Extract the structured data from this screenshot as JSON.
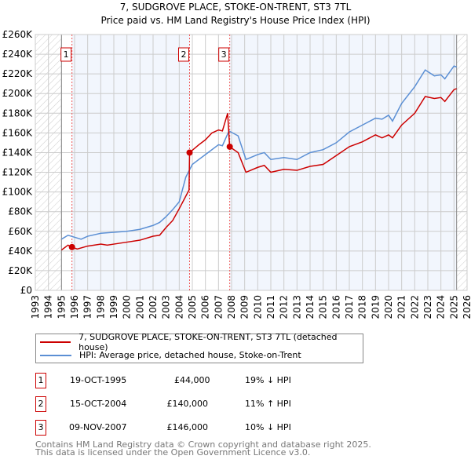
{
  "chart_data": {
    "type": "line",
    "title": "7, SUDGROVE PLACE, STOKE-ON-TRENT, ST3 7TL",
    "subtitle": "Price paid vs. HM Land Registry's House Price Index (HPI)",
    "xlim": [
      1993,
      2026
    ],
    "ylim": [
      0,
      260000
    ],
    "yticks": [
      "£0",
      "£20K",
      "£40K",
      "£60K",
      "£80K",
      "£100K",
      "£120K",
      "£140K",
      "£160K",
      "£180K",
      "£200K",
      "£220K",
      "£240K",
      "£260K"
    ],
    "xticks": [
      "1993",
      "1994",
      "1995",
      "1996",
      "1997",
      "1998",
      "1999",
      "2000",
      "2001",
      "2002",
      "2003",
      "2004",
      "2005",
      "2006",
      "2007",
      "2008",
      "2009",
      "2010",
      "2011",
      "2012",
      "2013",
      "2014",
      "2015",
      "2016",
      "2017",
      "2018",
      "2019",
      "2020",
      "2021",
      "2022",
      "2023",
      "2024",
      "2025",
      "2026"
    ],
    "grid": true,
    "series": [
      {
        "name": "7, SUDGROVE PLACE, STOKE-ON-TRENT, ST3 7TL (detached house)",
        "color": "#cc0000",
        "x": [
          1995,
          1995.5,
          1995.8,
          1996.2,
          1997,
          1998,
          1998.5,
          1999,
          2000,
          2001,
          2002,
          2002.5,
          2003,
          2003.5,
          2004,
          2004.75,
          2004.79,
          2005.5,
          2006,
          2006.5,
          2007,
          2007.3,
          2007.7,
          2007.85,
          2008.5,
          2009.1,
          2010,
          2010.5,
          2011,
          2012,
          2013,
          2014,
          2015,
          2016,
          2017,
          2018,
          2019,
          2019.5,
          2020,
          2020.3,
          2021,
          2022,
          2022.8,
          2023.5,
          2024,
          2024.3,
          2025,
          2025.2
        ],
        "y": [
          41000,
          46000,
          44000,
          42000,
          45000,
          47000,
          46000,
          47000,
          49000,
          51000,
          55000,
          56000,
          64000,
          71000,
          83000,
          102000,
          140000,
          148000,
          153000,
          160000,
          163000,
          162000,
          180000,
          146000,
          140000,
          120000,
          125000,
          127000,
          120000,
          123000,
          122000,
          126000,
          128000,
          137000,
          146000,
          151000,
          158000,
          155000,
          158000,
          155000,
          168000,
          180000,
          197000,
          195000,
          196000,
          192000,
          204000,
          205000
        ]
      },
      {
        "name": "HPI: Average price, detached house, Stoke-on-Trent",
        "color": "#5b8fd4",
        "x": [
          1995,
          1995.5,
          1996,
          1996.5,
          1997,
          1998,
          1999,
          2000,
          2001,
          2002,
          2002.5,
          2003,
          2003.5,
          2004,
          2004.5,
          2005,
          2006,
          2007,
          2007.3,
          2007.8,
          2008.5,
          2009.1,
          2010,
          2010.5,
          2011,
          2012,
          2013,
          2014,
          2015,
          2016,
          2017,
          2018,
          2019,
          2019.5,
          2020,
          2020.3,
          2021,
          2022,
          2022.8,
          2023.5,
          2024,
          2024.3,
          2025,
          2025.2
        ],
        "y": [
          52000,
          56000,
          54000,
          52000,
          55000,
          58000,
          59000,
          60000,
          62000,
          66000,
          69000,
          75000,
          82000,
          90000,
          115000,
          128000,
          138000,
          148000,
          147000,
          162000,
          157000,
          133000,
          138000,
          140000,
          133000,
          135000,
          133000,
          140000,
          143000,
          150000,
          161000,
          168000,
          175000,
          174000,
          178000,
          172000,
          190000,
          207000,
          224000,
          218000,
          219000,
          215000,
          228000,
          227000
        ]
      }
    ],
    "sales": [
      {
        "label": "1",
        "date": "19-OCT-1995",
        "x": 1995.8,
        "price": "£44,000",
        "value": 44000,
        "hpi": "19% ↓ HPI"
      },
      {
        "label": "2",
        "date": "15-OCT-2004",
        "x": 2004.79,
        "price": "£140,000",
        "value": 140000,
        "hpi": "11% ↑ HPI"
      },
      {
        "label": "3",
        "date": "09-NOV-2007",
        "x": 2007.86,
        "price": "£146,000",
        "value": 146000,
        "hpi": "10% ↓ HPI"
      }
    ],
    "data_start": 1995,
    "data_end": 2025.2,
    "colors": {
      "shade": "#f2f6fd",
      "grid": "#cccccc"
    }
  },
  "footer": [
    "Contains HM Land Registry data © Crown copyright and database right 2025.",
    "This data is licensed under the Open Government Licence v3.0."
  ]
}
